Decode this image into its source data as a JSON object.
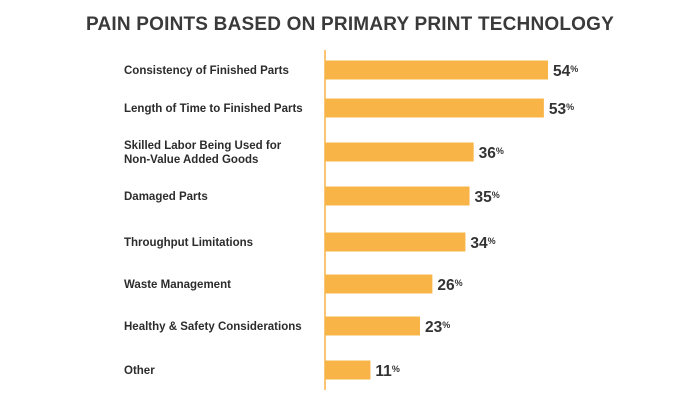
{
  "chart_data": {
    "type": "bar",
    "orientation": "horizontal",
    "title": "PAIN POINTS BASED ON PRIMARY PRINT TECHNOLOGY",
    "categories": [
      "Consistency of Finished Parts",
      "Length of Time to Finished Parts",
      "Skilled Labor Being Used for Non-Value Added Goods",
      "Damaged Parts",
      "Throughput Limitations",
      "Waste Management",
      "Healthy & Safety Considerations",
      "Other"
    ],
    "category_lines": [
      [
        "Consistency of Finished Parts"
      ],
      [
        "Length of Time to Finished Parts"
      ],
      [
        "Skilled Labor Being Used for",
        "Non-Value Added Goods"
      ],
      [
        "Damaged Parts"
      ],
      [
        "Throughput Limitations"
      ],
      [
        "Waste Management"
      ],
      [
        "Healthy & Safety Considerations"
      ],
      [
        "Other"
      ]
    ],
    "values": [
      54,
      53,
      36,
      35,
      34,
      26,
      23,
      11
    ],
    "value_suffix": "%",
    "xlim": [
      0,
      54
    ],
    "grid": false,
    "legend": "none",
    "bar_color": "#f9b448",
    "axis_color": "#f9b448"
  }
}
